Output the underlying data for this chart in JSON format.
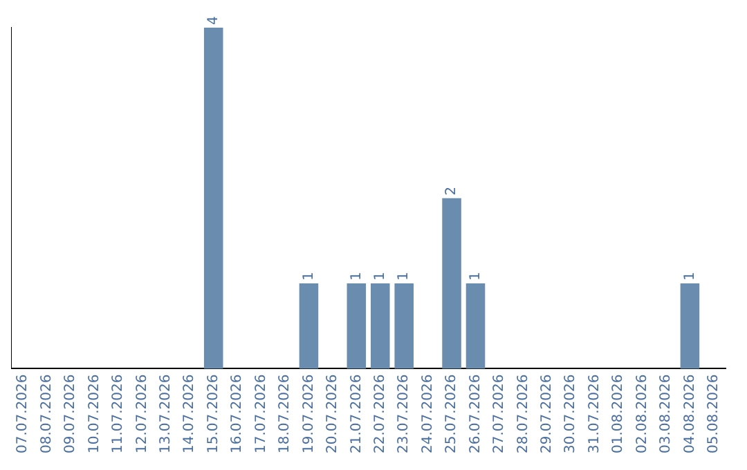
{
  "chart_data": {
    "type": "bar",
    "categories": [
      "07.07.2026",
      "08.07.2026",
      "09.07.2026",
      "10.07.2026",
      "11.07.2026",
      "12.07.2026",
      "13.07.2026",
      "14.07.2026",
      "15.07.2026",
      "16.07.2026",
      "17.07.2026",
      "18.07.2026",
      "19.07.2026",
      "20.07.2026",
      "21.07.2026",
      "22.07.2026",
      "23.07.2026",
      "24.07.2026",
      "25.07.2026",
      "26.07.2026",
      "27.07.2026",
      "28.07.2026",
      "29.07.2026",
      "30.07.2026",
      "31.07.2026",
      "01.08.2026",
      "02.08.2026",
      "03.08.2026",
      "04.08.2026",
      "05.08.2026"
    ],
    "values": [
      0,
      0,
      0,
      0,
      0,
      0,
      0,
      0,
      4,
      0,
      0,
      0,
      1,
      0,
      1,
      1,
      1,
      0,
      2,
      1,
      0,
      0,
      0,
      0,
      0,
      0,
      0,
      0,
      1,
      0
    ],
    "value_labels": [
      null,
      null,
      null,
      null,
      null,
      null,
      null,
      null,
      "4",
      null,
      null,
      null,
      "1",
      null,
      "1",
      "1",
      "1",
      null,
      "2",
      "1",
      null,
      null,
      null,
      null,
      null,
      null,
      null,
      null,
      "1",
      null
    ],
    "color": "#6a8caf",
    "grid": false,
    "legend": false,
    "tick_labels": "x"
  }
}
